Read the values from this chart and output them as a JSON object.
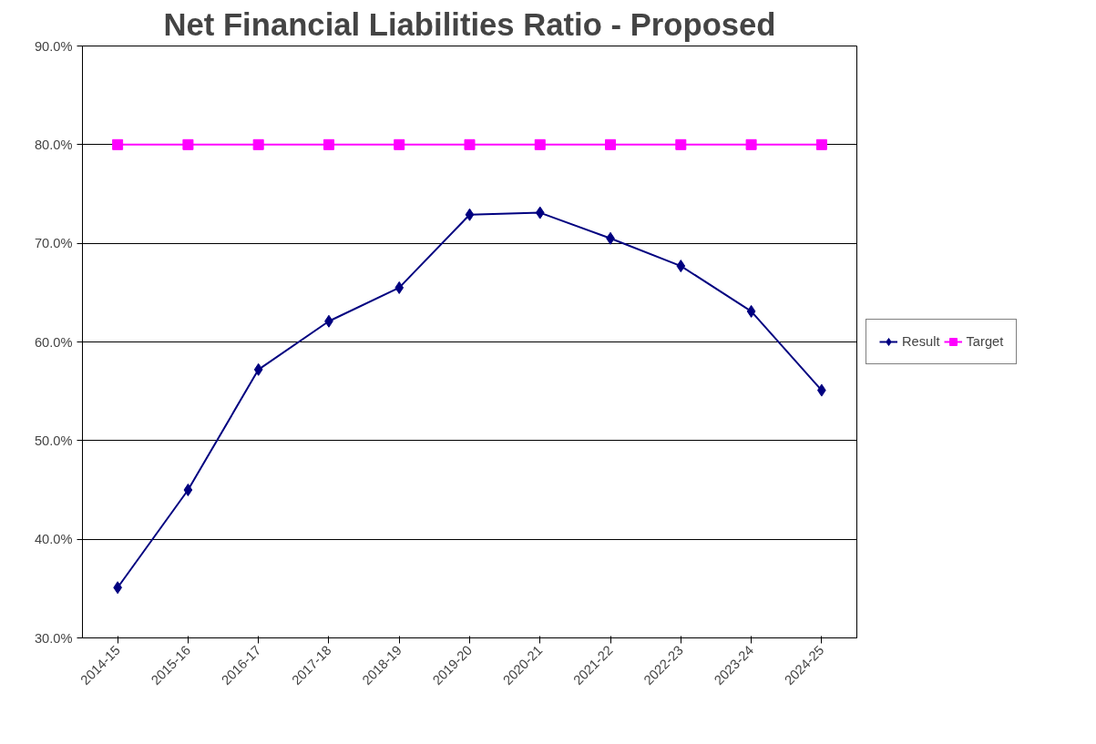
{
  "chart_data": {
    "type": "line",
    "title": "Net Financial Liabilities Ratio - Proposed",
    "categories": [
      "2014-15",
      "2015-16",
      "2016-17",
      "2017-18",
      "2018-19",
      "2019-20",
      "2020-21",
      "2021-22",
      "2022-23",
      "2023-24",
      "2024-25"
    ],
    "series": [
      {
        "name": "Result",
        "color": "#000080",
        "marker": "diamond",
        "values": [
          35.1,
          45.0,
          57.2,
          62.1,
          65.5,
          72.9,
          73.1,
          70.5,
          67.7,
          63.1,
          55.1
        ]
      },
      {
        "name": "Target",
        "color": "#ff00ff",
        "marker": "square",
        "values": [
          80,
          80,
          80,
          80,
          80,
          80,
          80,
          80,
          80,
          80,
          80
        ]
      }
    ],
    "ylim": [
      30,
      90
    ],
    "yticks": [
      {
        "value": 30,
        "label": "30.0%"
      },
      {
        "value": 40,
        "label": "40.0%"
      },
      {
        "value": 50,
        "label": "50.0%"
      },
      {
        "value": 60,
        "label": "60.0%"
      },
      {
        "value": 70,
        "label": "70.0%"
      },
      {
        "value": 80,
        "label": "80.0%"
      },
      {
        "value": 90,
        "label": "90.0%"
      }
    ],
    "grid": "y",
    "legend": "right",
    "line_style": "solid"
  }
}
